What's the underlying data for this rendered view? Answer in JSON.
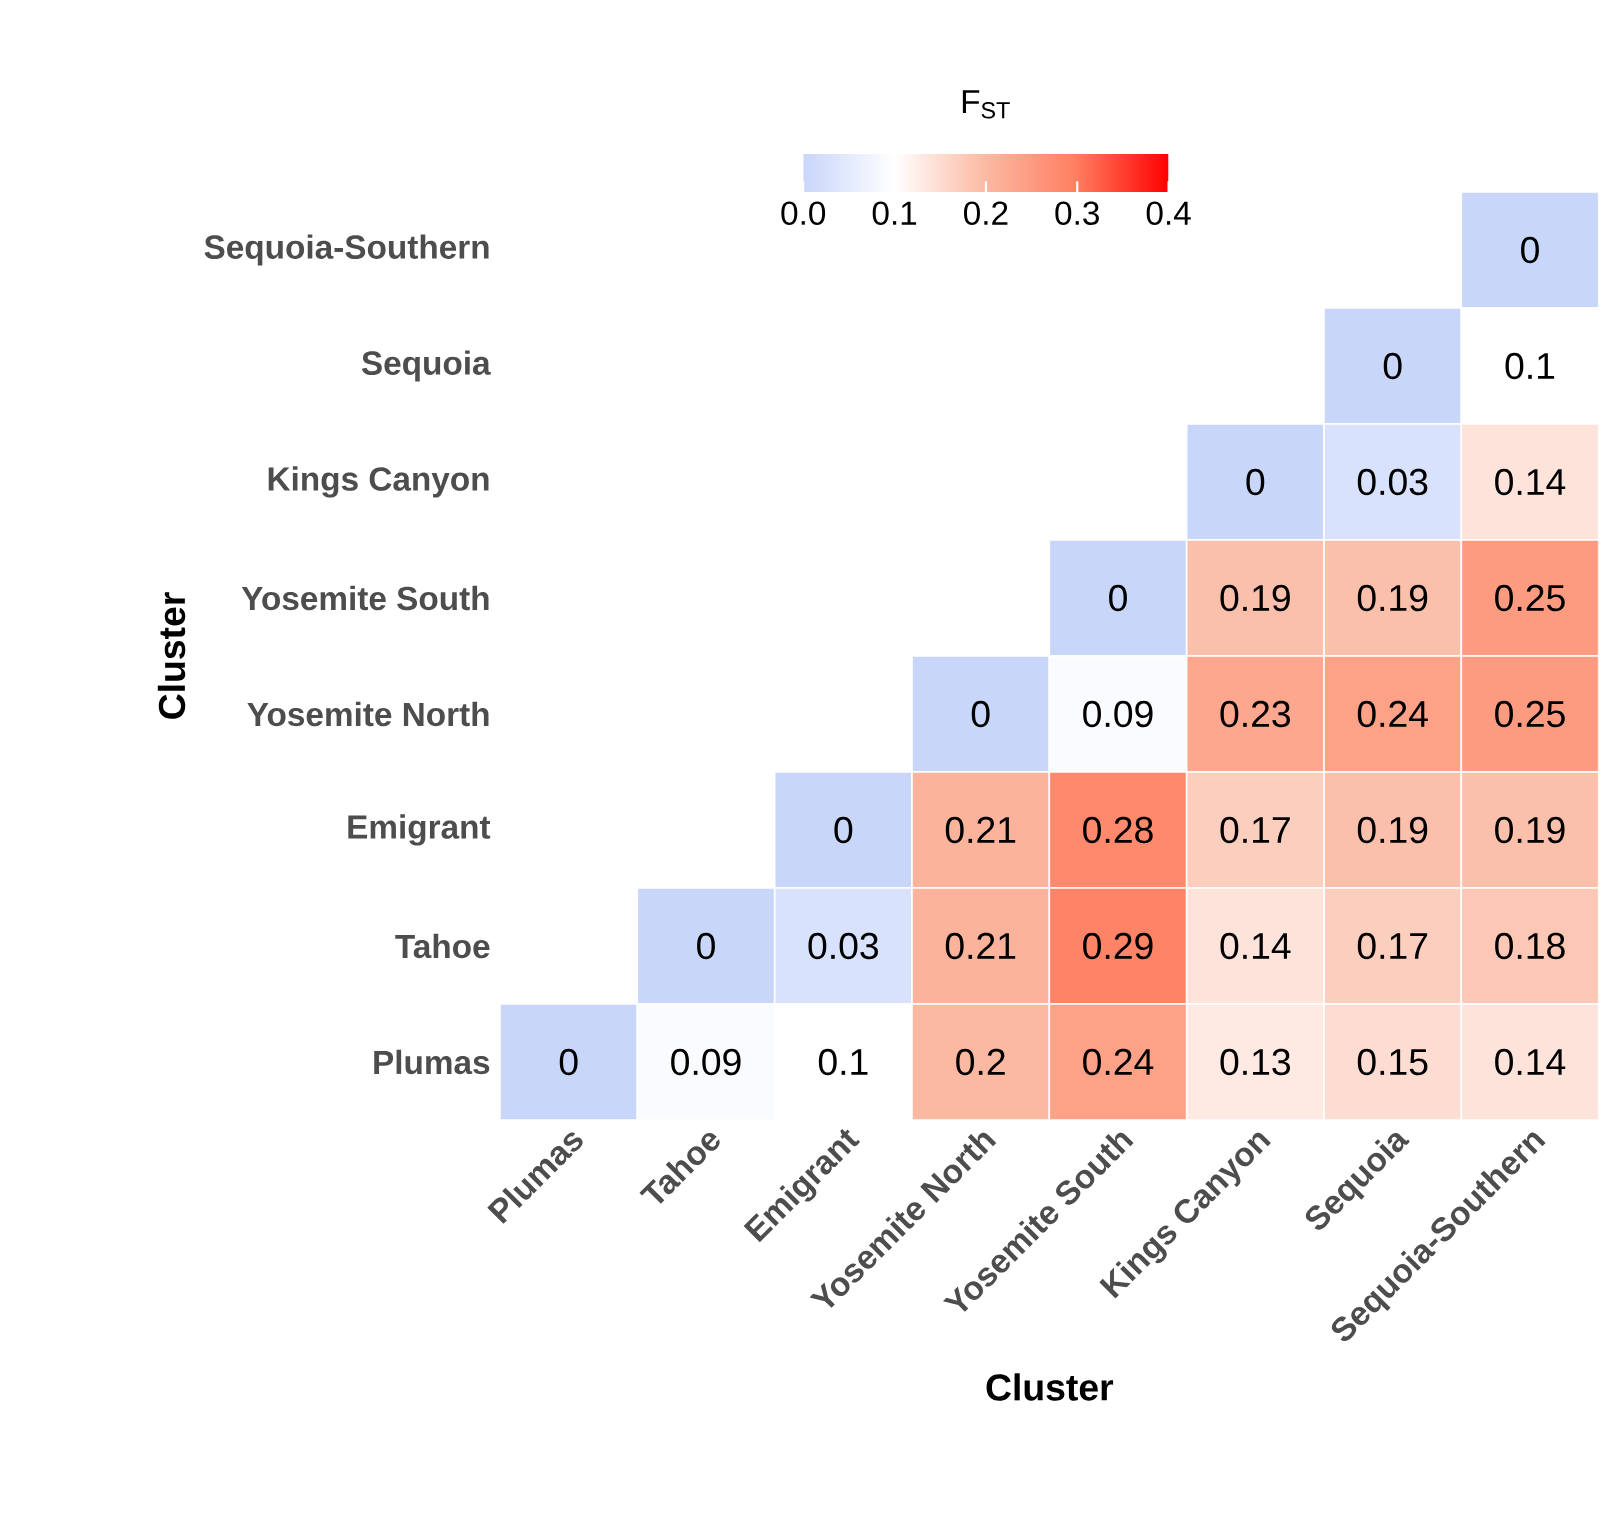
{
  "chart_data": {
    "type": "heatmap",
    "clabel": "F$_{ST}$",
    "xlabel": "Cluster",
    "ylabel": "Cluster",
    "categories": [
      "Plumas",
      "Tahoe",
      "Emigrant",
      "Yosemite North",
      "Yosemite South",
      "Kings Canyon",
      "Sequoia",
      "Sequoia-Southern"
    ],
    "y_categories": [
      "Sequoia-Southern",
      "Sequoia",
      "Kings Canyon",
      "Yosemite South",
      "Yosemite North",
      "Emigrant",
      "Tahoe",
      "Plumas"
    ],
    "cells": [
      [
        null,
        null,
        null,
        null,
        null,
        null,
        null,
        0
      ],
      [
        null,
        null,
        null,
        null,
        null,
        null,
        0,
        0.1
      ],
      [
        null,
        null,
        null,
        null,
        null,
        0,
        0.03,
        0.14
      ],
      [
        null,
        null,
        null,
        null,
        0,
        0.19,
        0.19,
        0.25
      ],
      [
        null,
        null,
        null,
        0,
        0.09,
        0.23,
        0.24,
        0.25
      ],
      [
        null,
        null,
        0,
        0.21,
        0.28,
        0.17,
        0.19,
        0.19
      ],
      [
        null,
        0,
        0.03,
        0.21,
        0.29,
        0.14,
        0.17,
        0.18
      ],
      [
        0,
        0.09,
        0.1,
        0.2,
        0.24,
        0.13,
        0.15,
        0.14
      ]
    ],
    "data_labels": true,
    "clim": [
      0,
      0.4
    ],
    "cticks": [
      {
        "value": 0,
        "label": "0.0"
      },
      {
        "value": 0.1,
        "label": "0.1"
      },
      {
        "value": 0.2,
        "label": "0.2"
      },
      {
        "value": 0.3,
        "label": "0.3"
      },
      {
        "value": 0.4,
        "label": "0.4"
      }
    ]
  }
}
